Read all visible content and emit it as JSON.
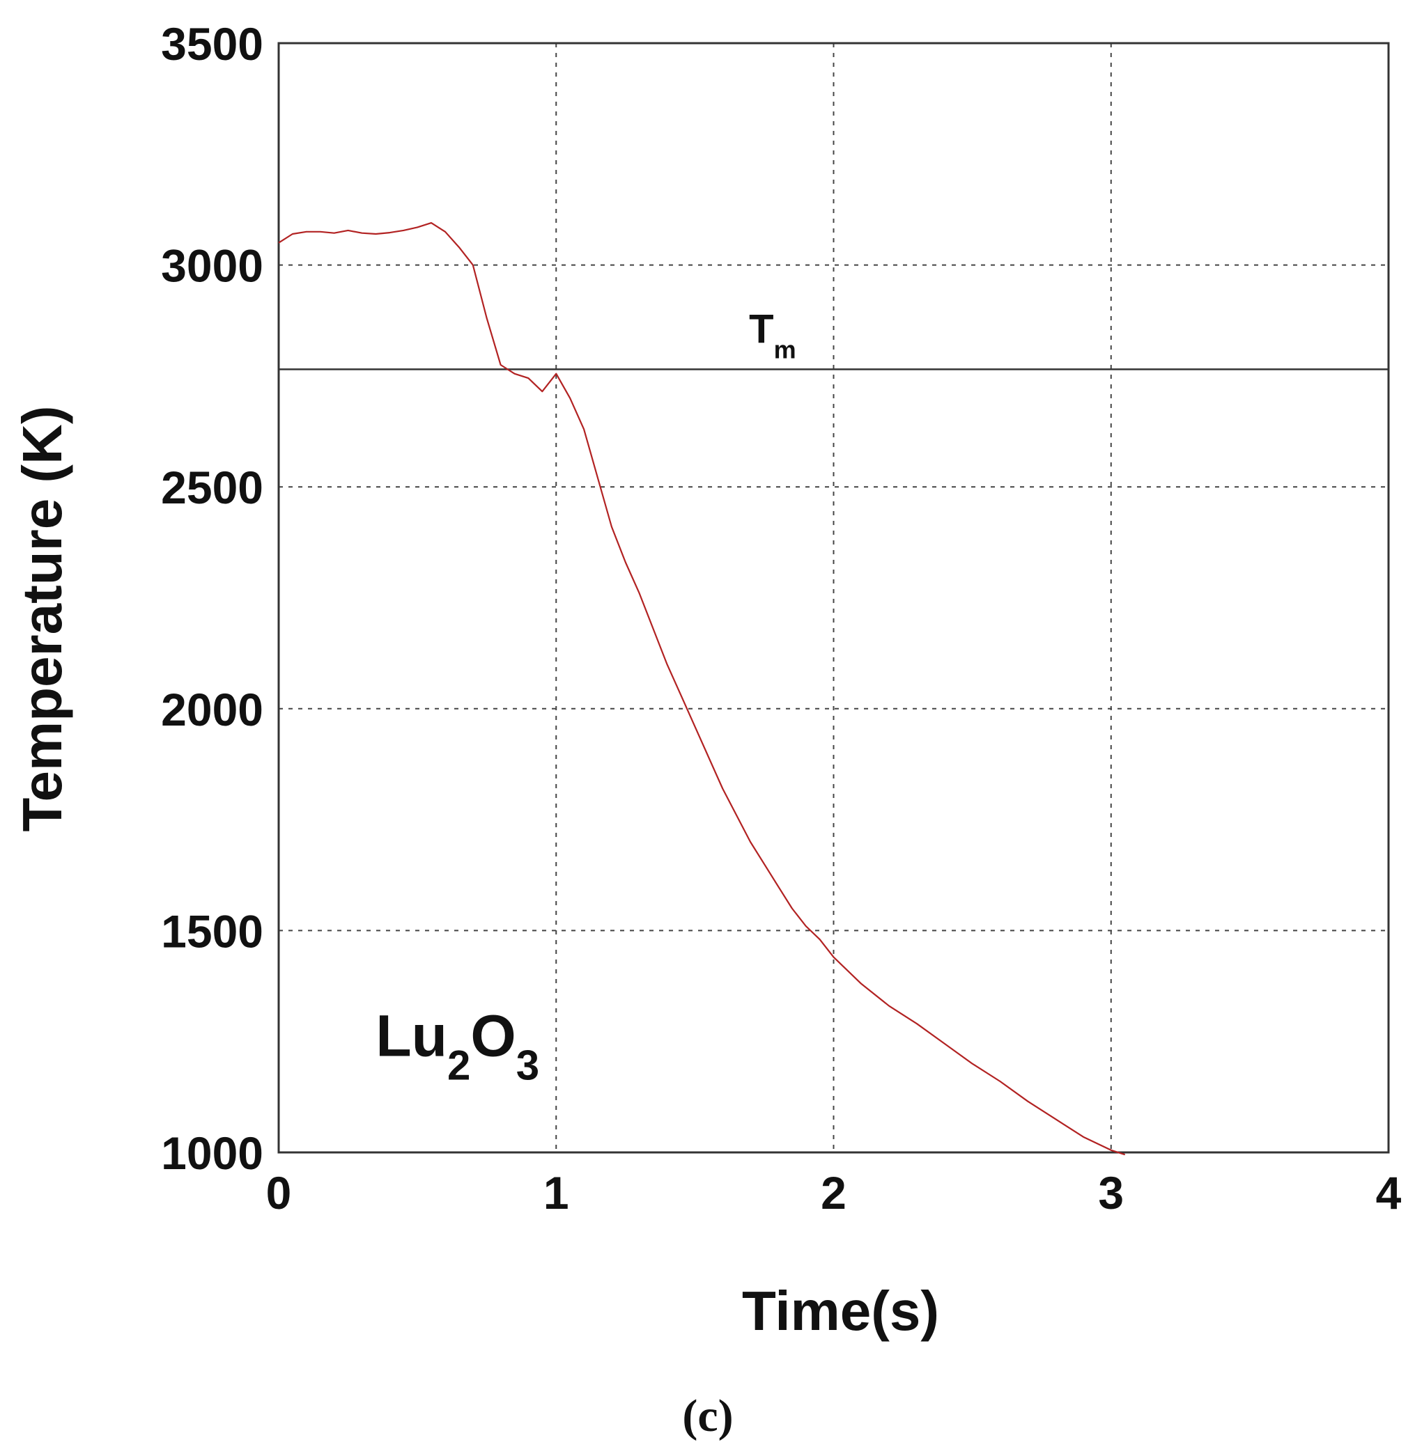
{
  "chart_data": {
    "type": "line",
    "xlabel": "Time(s)",
    "ylabel": "Temperature (K)",
    "xlim": [
      0,
      4
    ],
    "ylim": [
      1000,
      3500
    ],
    "x_ticks": [
      "0",
      "1",
      "2",
      "3",
      "4"
    ],
    "y_ticks": [
      "1000",
      "1500",
      "2000",
      "2500",
      "3000",
      "3500"
    ],
    "grid": true,
    "reference_line": {
      "label": "T",
      "subscript": "m",
      "y": 2765
    },
    "annotation": {
      "parts": [
        "Lu",
        "2",
        "O",
        "3"
      ],
      "x": 0.35,
      "y": 1280
    },
    "panel_label": "(c)",
    "series": [
      {
        "color": "#b22222",
        "x": [
          0,
          0.05,
          0.1,
          0.15,
          0.2,
          0.25,
          0.3,
          0.35,
          0.4,
          0.45,
          0.5,
          0.55,
          0.6,
          0.65,
          0.7,
          0.75,
          0.8,
          0.85,
          0.9,
          0.95,
          1.0,
          1.05,
          1.1,
          1.15,
          1.2,
          1.25,
          1.3,
          1.35,
          1.4,
          1.45,
          1.5,
          1.55,
          1.6,
          1.65,
          1.7,
          1.75,
          1.8,
          1.85,
          1.9,
          1.95,
          2.0,
          2.1,
          2.2,
          2.3,
          2.4,
          2.5,
          2.6,
          2.7,
          2.8,
          2.9,
          3.0,
          3.05
        ],
        "y": [
          3050,
          3070,
          3075,
          3075,
          3072,
          3078,
          3072,
          3070,
          3073,
          3078,
          3085,
          3095,
          3075,
          3040,
          3000,
          2880,
          2775,
          2755,
          2745,
          2715,
          2755,
          2700,
          2630,
          2520,
          2410,
          2330,
          2260,
          2180,
          2100,
          2030,
          1960,
          1890,
          1820,
          1760,
          1700,
          1650,
          1600,
          1550,
          1510,
          1480,
          1440,
          1380,
          1330,
          1290,
          1245,
          1200,
          1160,
          1115,
          1075,
          1035,
          1005,
          995
        ]
      }
    ]
  }
}
